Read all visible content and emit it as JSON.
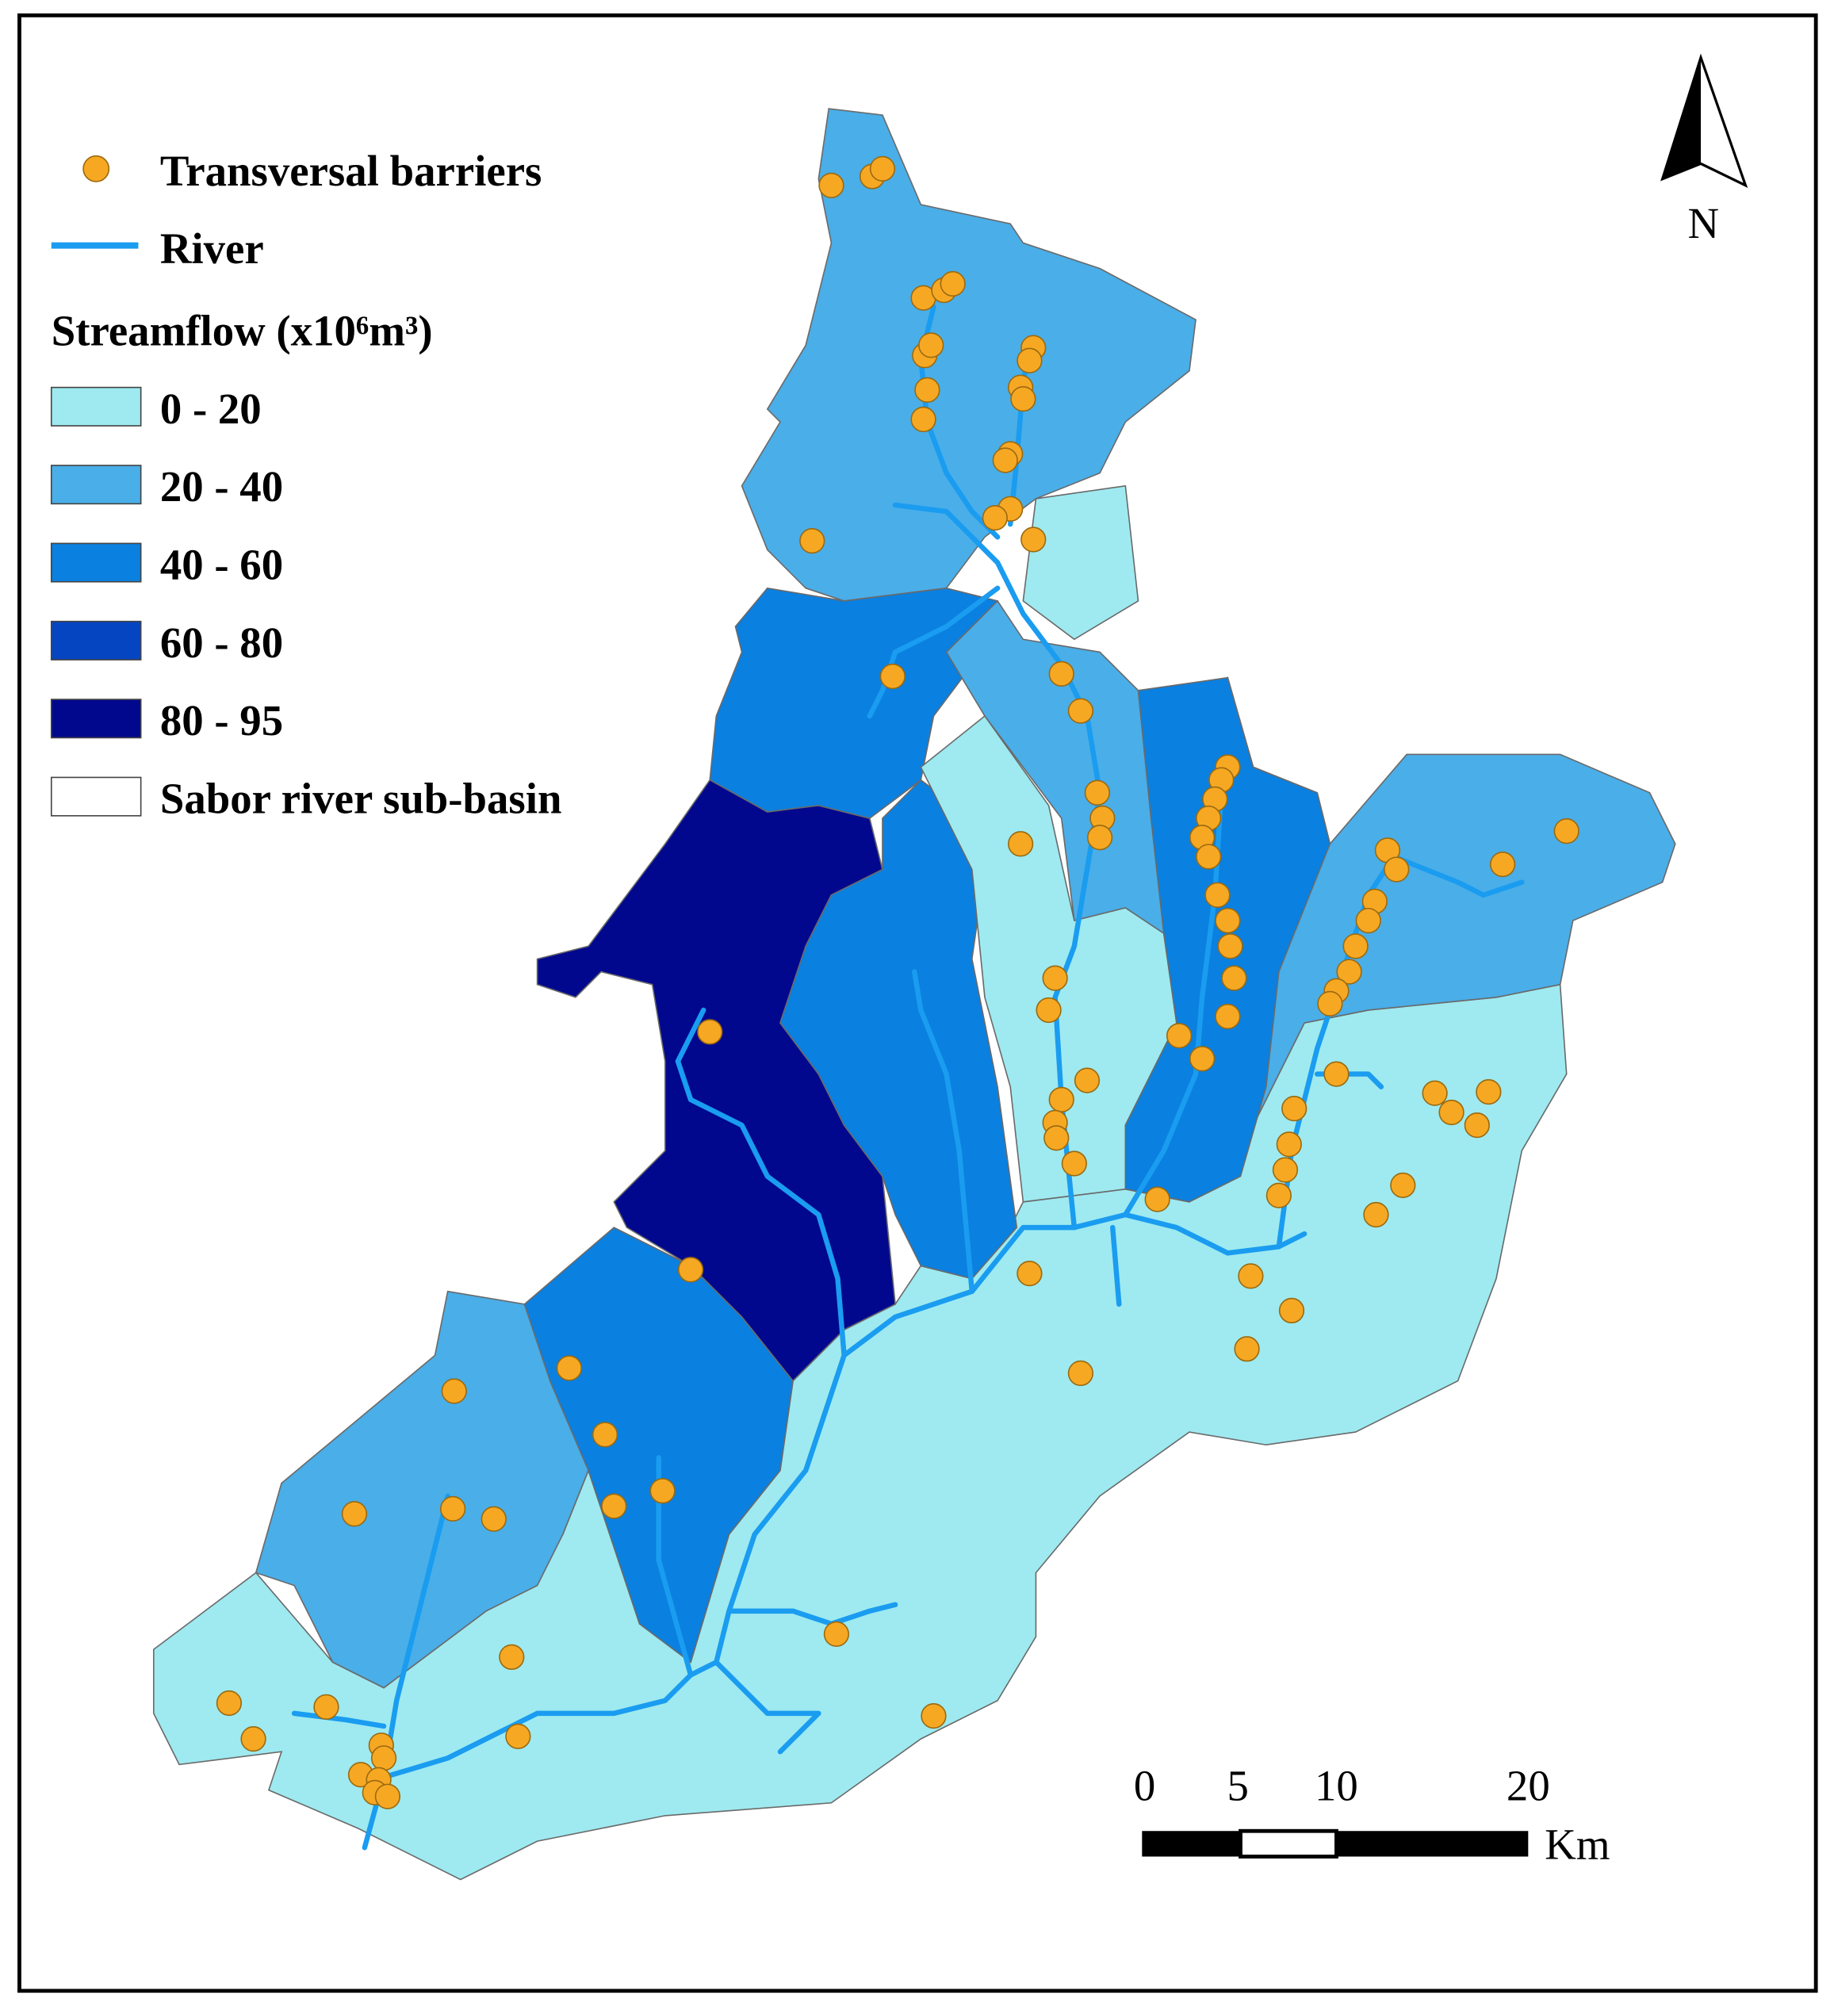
{
  "legend": {
    "barriers": "Transversal barriers",
    "river": "River",
    "streamflow_title": "Streamflow (x10⁶m³)",
    "classes": [
      {
        "label": "0 - 20",
        "color": "#9eeaf0"
      },
      {
        "label": "20 - 40",
        "color": "#4aaee8"
      },
      {
        "label": "40 - 60",
        "color": "#0a80e0"
      },
      {
        "label": "60 - 80",
        "color": "#0545c2"
      },
      {
        "label": "80 - 95",
        "color": "#02088e"
      }
    ],
    "subbasin": "Sabor river sub-basin"
  },
  "north": "N",
  "scale": {
    "labels": [
      "0",
      "5",
      "10",
      "20"
    ],
    "unit": "Km"
  }
}
